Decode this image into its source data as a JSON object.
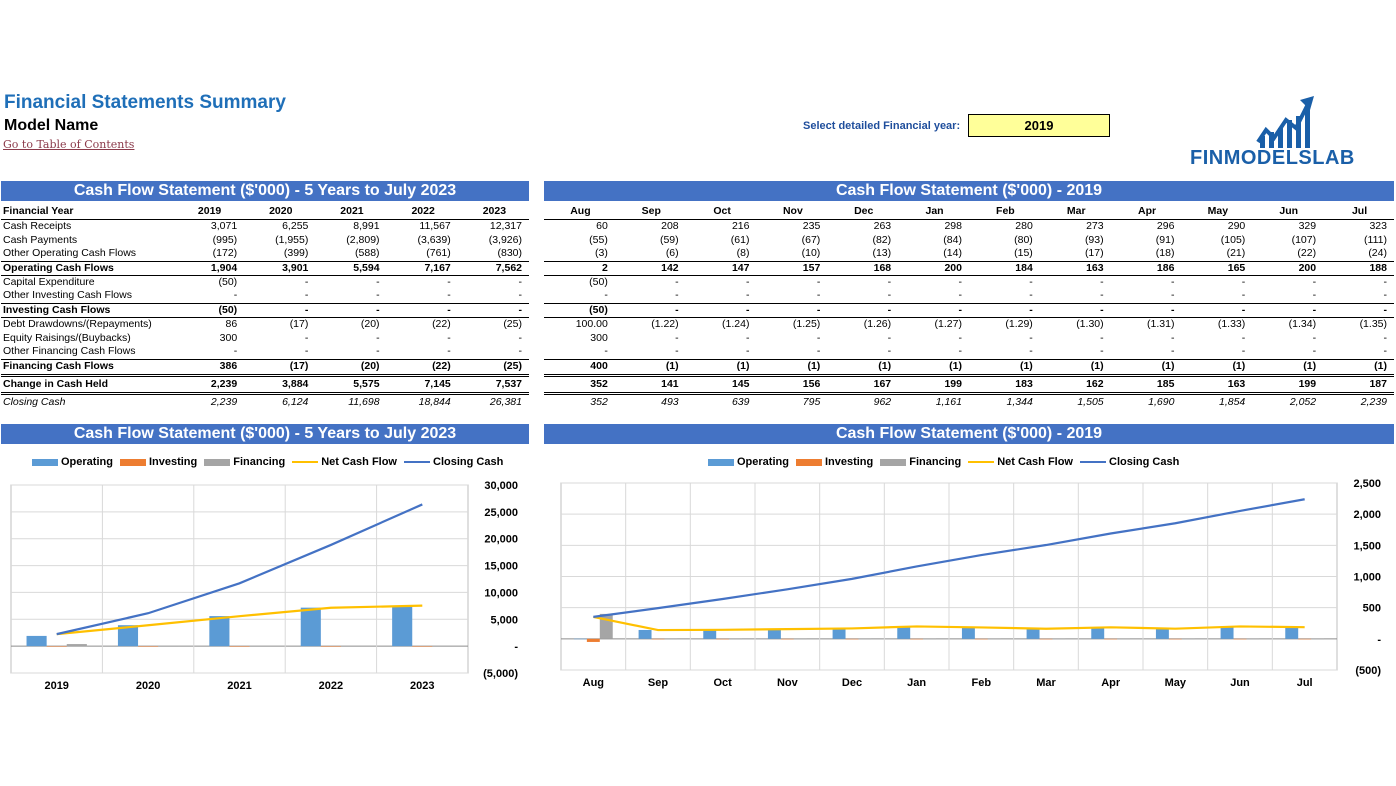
{
  "header": {
    "title": "Financial Statements Summary",
    "model_name": "Model Name",
    "toc_link": "Go to Table of Contents",
    "year_label": "Select detailed Financial year:",
    "year_value": "2019",
    "logo_text": "FINMODELSLAB"
  },
  "colors": {
    "operating": "#5b9bd5",
    "investing": "#ed7d31",
    "financing": "#a5a5a5",
    "net": "#ffc000",
    "closing": "#4472c4",
    "bar": "#4472c4"
  },
  "annual": {
    "title": "Cash Flow Statement ($'000) - 5 Years to July 2023",
    "row_header": "Financial Year",
    "columns": [
      "2019",
      "2020",
      "2021",
      "2022",
      "2023"
    ],
    "rows": [
      {
        "label": "Cash Receipts",
        "style": "normal",
        "values": [
          "3,071",
          "6,255",
          "8,991",
          "11,567",
          "12,317"
        ]
      },
      {
        "label": "Cash Payments",
        "style": "normal",
        "values": [
          "(995)",
          "(1,955)",
          "(2,809)",
          "(3,639)",
          "(3,926)"
        ]
      },
      {
        "label": "Other Operating Cash Flows",
        "style": "normal",
        "values": [
          "(172)",
          "(399)",
          "(588)",
          "(761)",
          "(830)"
        ]
      },
      {
        "label": "Operating Cash Flows",
        "style": "sub",
        "values": [
          "1,904",
          "3,901",
          "5,594",
          "7,167",
          "7,562"
        ]
      },
      {
        "label": "Capital Expenditure",
        "style": "normal",
        "values": [
          "(50)",
          "-",
          "-",
          "-",
          "-"
        ]
      },
      {
        "label": "Other Investing Cash Flows",
        "style": "normal",
        "values": [
          "-",
          "-",
          "-",
          "-",
          "-"
        ]
      },
      {
        "label": "Investing Cash Flows",
        "style": "sub",
        "values": [
          "(50)",
          "-",
          "-",
          "-",
          "-"
        ]
      },
      {
        "label": "Debt Drawdowns/(Repayments)",
        "style": "normal",
        "values": [
          "86",
          "(17)",
          "(20)",
          "(22)",
          "(25)"
        ]
      },
      {
        "label": "Equity Raisings/(Buybacks)",
        "style": "normal",
        "values": [
          "300",
          "-",
          "-",
          "-",
          "-"
        ]
      },
      {
        "label": "Other Financing Cash Flows",
        "style": "normal",
        "values": [
          "-",
          "-",
          "-",
          "-",
          "-"
        ]
      },
      {
        "label": "Financing Cash Flows",
        "style": "sub2",
        "values": [
          "386",
          "(17)",
          "(20)",
          "(22)",
          "(25)"
        ]
      },
      {
        "label": "Change in Cash Held",
        "style": "chg",
        "values": [
          "2,239",
          "3,884",
          "5,575",
          "7,145",
          "7,537"
        ]
      },
      {
        "label": "Closing Cash",
        "style": "close",
        "values": [
          "2,239",
          "6,124",
          "11,698",
          "18,844",
          "26,381"
        ]
      }
    ]
  },
  "monthly": {
    "title": "Cash Flow Statement ($'000) - 2019",
    "columns": [
      "Aug",
      "Sep",
      "Oct",
      "Nov",
      "Dec",
      "Jan",
      "Feb",
      "Mar",
      "Apr",
      "May",
      "Jun",
      "Jul"
    ],
    "rows": [
      {
        "style": "normal",
        "values": [
          "60",
          "208",
          "216",
          "235",
          "263",
          "298",
          "280",
          "273",
          "296",
          "290",
          "329",
          "323"
        ]
      },
      {
        "style": "normal",
        "values": [
          "(55)",
          "(59)",
          "(61)",
          "(67)",
          "(82)",
          "(84)",
          "(80)",
          "(93)",
          "(91)",
          "(105)",
          "(107)",
          "(111)"
        ]
      },
      {
        "style": "normal",
        "values": [
          "(3)",
          "(6)",
          "(8)",
          "(10)",
          "(13)",
          "(14)",
          "(15)",
          "(17)",
          "(18)",
          "(21)",
          "(22)",
          "(24)"
        ]
      },
      {
        "style": "sub",
        "values": [
          "2",
          "142",
          "147",
          "157",
          "168",
          "200",
          "184",
          "163",
          "186",
          "165",
          "200",
          "188"
        ]
      },
      {
        "style": "normal",
        "values": [
          "(50)",
          "-",
          "-",
          "-",
          "-",
          "-",
          "-",
          "-",
          "-",
          "-",
          "-",
          "-"
        ]
      },
      {
        "style": "normal",
        "values": [
          "-",
          "-",
          "-",
          "-",
          "-",
          "-",
          "-",
          "-",
          "-",
          "-",
          "-",
          "-"
        ]
      },
      {
        "style": "sub",
        "values": [
          "(50)",
          "-",
          "-",
          "-",
          "-",
          "-",
          "-",
          "-",
          "-",
          "-",
          "-",
          "-"
        ]
      },
      {
        "style": "normal",
        "values": [
          "100.00",
          "(1.22)",
          "(1.24)",
          "(1.25)",
          "(1.26)",
          "(1.27)",
          "(1.29)",
          "(1.30)",
          "(1.31)",
          "(1.33)",
          "(1.34)",
          "(1.35)"
        ]
      },
      {
        "style": "normal",
        "values": [
          "300",
          "-",
          "-",
          "-",
          "-",
          "-",
          "-",
          "-",
          "-",
          "-",
          "-",
          "-"
        ]
      },
      {
        "style": "normal",
        "values": [
          "-",
          "-",
          "-",
          "-",
          "-",
          "-",
          "-",
          "-",
          "-",
          "-",
          "-",
          "-"
        ]
      },
      {
        "style": "sub2",
        "values": [
          "400",
          "(1)",
          "(1)",
          "(1)",
          "(1)",
          "(1)",
          "(1)",
          "(1)",
          "(1)",
          "(1)",
          "(1)",
          "(1)"
        ]
      },
      {
        "style": "chg",
        "values": [
          "352",
          "141",
          "145",
          "156",
          "167",
          "199",
          "183",
          "162",
          "185",
          "163",
          "199",
          "187"
        ]
      },
      {
        "style": "close",
        "values": [
          "352",
          "493",
          "639",
          "795",
          "962",
          "1,161",
          "1,344",
          "1,505",
          "1,690",
          "1,854",
          "2,052",
          "2,239"
        ]
      }
    ]
  },
  "chart_data": [
    {
      "type": "bar",
      "title": "Cash Flow Statement ($'000) - 5 Years to July 2023",
      "categories": [
        "2019",
        "2020",
        "2021",
        "2022",
        "2023"
      ],
      "ylim": [
        -5000,
        30000
      ],
      "yticks": [
        "30,000",
        "25,000",
        "20,000",
        "15,000",
        "10,000",
        "5,000",
        "-",
        "(5,000)"
      ],
      "ytick_values": [
        30000,
        25000,
        20000,
        15000,
        10000,
        5000,
        0,
        -5000
      ],
      "legend": "top",
      "grid": true,
      "series": [
        {
          "name": "Operating",
          "type": "bar",
          "values": [
            1904,
            3901,
            5594,
            7167,
            7562
          ]
        },
        {
          "name": "Investing",
          "type": "bar",
          "values": [
            -50,
            0,
            0,
            0,
            0
          ]
        },
        {
          "name": "Financing",
          "type": "bar",
          "values": [
            386,
            -17,
            -20,
            -22,
            -25
          ]
        },
        {
          "name": "Net Cash Flow",
          "type": "line",
          "values": [
            2239,
            3884,
            5575,
            7145,
            7537
          ]
        },
        {
          "name": "Closing Cash",
          "type": "line",
          "values": [
            2239,
            6124,
            11698,
            18844,
            26381
          ]
        }
      ]
    },
    {
      "type": "bar",
      "title": "Cash Flow Statement ($'000) - 2019",
      "categories": [
        "Aug",
        "Sep",
        "Oct",
        "Nov",
        "Dec",
        "Jan",
        "Feb",
        "Mar",
        "Apr",
        "May",
        "Jun",
        "Jul"
      ],
      "ylim": [
        -500,
        2500
      ],
      "yticks": [
        "2,500",
        "2,000",
        "1,500",
        "1,000",
        "500",
        "-",
        "(500)"
      ],
      "ytick_values": [
        2500,
        2000,
        1500,
        1000,
        500,
        0,
        -500
      ],
      "legend": "top",
      "grid": true,
      "series": [
        {
          "name": "Operating",
          "type": "bar",
          "values": [
            2,
            142,
            147,
            157,
            168,
            200,
            184,
            163,
            186,
            165,
            200,
            188
          ]
        },
        {
          "name": "Investing",
          "type": "bar",
          "values": [
            -50,
            0,
            0,
            0,
            0,
            0,
            0,
            0,
            0,
            0,
            0,
            0
          ]
        },
        {
          "name": "Financing",
          "type": "bar",
          "values": [
            400,
            -1,
            -1,
            -1,
            -1,
            -1,
            -1,
            -1,
            -1,
            -1,
            -1,
            -1
          ]
        },
        {
          "name": "Net Cash Flow",
          "type": "line",
          "values": [
            352,
            141,
            145,
            156,
            167,
            199,
            183,
            162,
            185,
            163,
            199,
            187
          ]
        },
        {
          "name": "Closing Cash",
          "type": "line",
          "values": [
            352,
            493,
            639,
            795,
            962,
            1161,
            1344,
            1505,
            1690,
            1854,
            2052,
            2239
          ]
        }
      ]
    }
  ]
}
